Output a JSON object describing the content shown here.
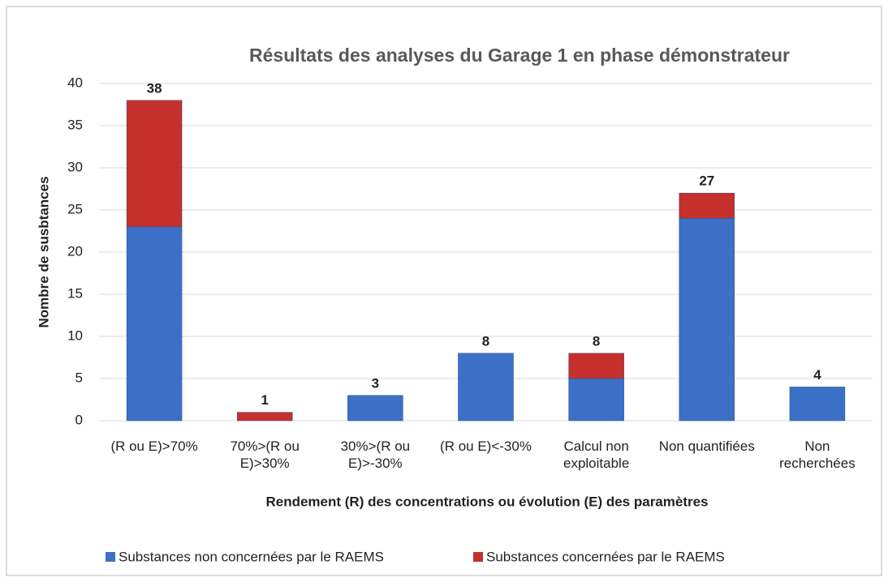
{
  "chart_data": {
    "type": "stacked_bar",
    "title": "Résultats des analyses du Garage 1 en phase démonstrateur",
    "x_label": "Rendement (R) des concentrations  ou évolution (E) des paramètres",
    "y_label": "Nombre de susbtances",
    "categories": [
      "(R ou E)>70%",
      "70%>(R ou E)>30%",
      "30%>(R ou E)>-30%",
      "(R ou E)<-30%",
      "Calcul non exploitable",
      "Non quantifiées",
      "Non recherchées"
    ],
    "series": [
      {
        "name": "Substances non concernées par le RAEMS",
        "color": "#3b70c6",
        "values": [
          23,
          0,
          3,
          8,
          5,
          24,
          4
        ]
      },
      {
        "name": "Substances concernées par le RAEMS",
        "color": "#c6302c",
        "values": [
          15,
          1,
          0,
          0,
          3,
          3,
          0
        ]
      }
    ],
    "totals": [
      38,
      1,
      3,
      8,
      8,
      27,
      4
    ],
    "ylim": [
      0,
      40
    ],
    "yticks": [
      0,
      5,
      10,
      15,
      20,
      25,
      30,
      35,
      40
    ],
    "grid": true,
    "legend": "bottom"
  }
}
